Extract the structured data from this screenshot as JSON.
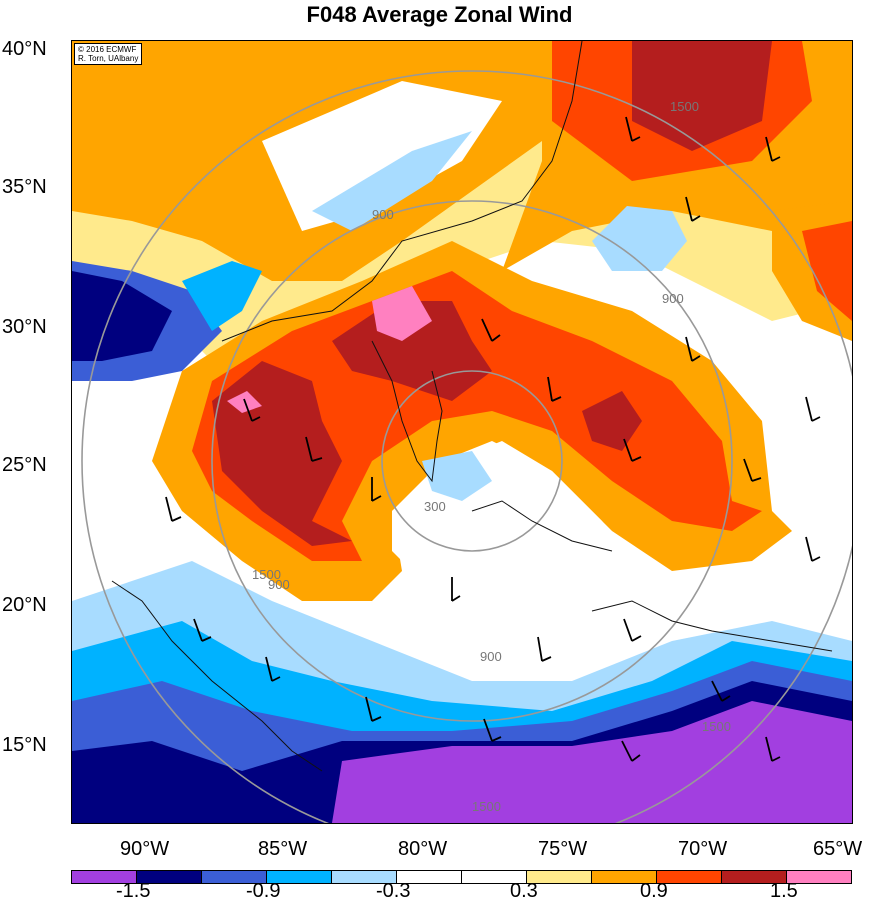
{
  "title": "F048 Average Zonal Wind",
  "copyright": [
    "© 2016 ECMWF",
    "R. Torn, UAlbany"
  ],
  "lat_labels": [
    "40°N",
    "35°N",
    "30°N",
    "25°N",
    "20°N",
    "15°N"
  ],
  "lon_labels": [
    "90°W",
    "85°W",
    "80°W",
    "75°W",
    "70°W",
    "65°W"
  ],
  "contour_labels": [
    "1500",
    "900",
    "300",
    "900",
    "1500",
    "900",
    "900",
    "1500",
    "1500"
  ],
  "colorbar": {
    "colors": [
      "#a23fe0",
      "#00007f",
      "#3b5ed6",
      "#00b2ff",
      "#a8dcff",
      "#ffffff",
      "#ffffff",
      "#ffea8c",
      "#ffa500",
      "#ff4500",
      "#b41e1e",
      "#ff80c0"
    ],
    "labels": [
      "-1.5",
      "-0.9",
      "-0.3",
      "0.3",
      "0.9",
      "1.5"
    ]
  }
}
